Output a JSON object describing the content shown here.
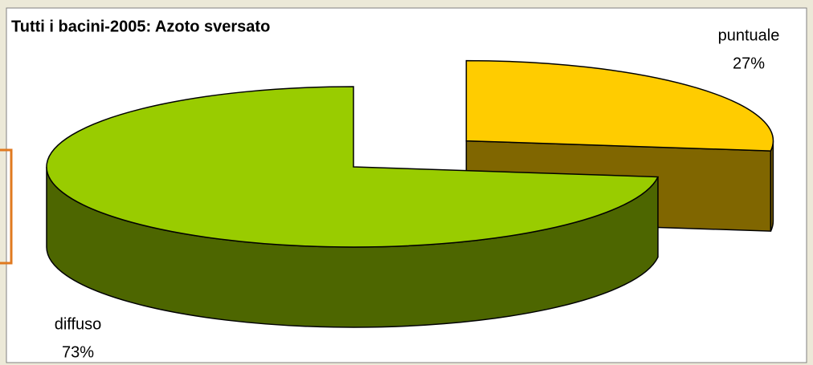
{
  "chart_data": {
    "type": "pie",
    "title": "Tutti i bacini-2005: Azoto sversato",
    "categories": [
      "puntuale",
      "diffuso"
    ],
    "values": [
      27,
      73
    ],
    "value_labels": [
      "27%",
      "73%"
    ],
    "colors": [
      "#ffcc00",
      "#99cc00"
    ]
  }
}
